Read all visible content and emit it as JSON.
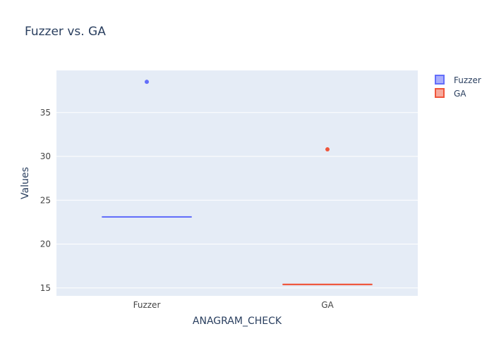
{
  "chart_data": {
    "type": "box",
    "title": "Fuzzer vs. GA",
    "xlabel": "ANAGRAM_CHECK",
    "ylabel": "Values",
    "categories": [
      "Fuzzer",
      "GA"
    ],
    "ylim": [
      14.1,
      39.8
    ],
    "yticks": [
      15,
      20,
      25,
      30,
      35
    ],
    "grid": true,
    "legend_position": "top-right",
    "series": [
      {
        "name": "Fuzzer",
        "category": "Fuzzer",
        "color": "#636efa",
        "fill": "#a9aefc",
        "box": {
          "q1": 23.1,
          "median": 23.1,
          "q3": 23.1,
          "whisker_low": 23.1,
          "whisker_high": 23.1
        },
        "outliers": [
          38.5
        ]
      },
      {
        "name": "GA",
        "category": "GA",
        "color": "#ef553b",
        "fill": "#f7a99c",
        "box": {
          "q1": 15.4,
          "median": 15.4,
          "q3": 15.4,
          "whisker_low": 15.4,
          "whisker_high": 15.4
        },
        "outliers": [
          30.8
        ]
      }
    ]
  },
  "colors": {
    "plot_background": "#e5ecf6",
    "gridline": "#ffffff",
    "text": "#2a3f5f",
    "tick_text": "#444444"
  }
}
